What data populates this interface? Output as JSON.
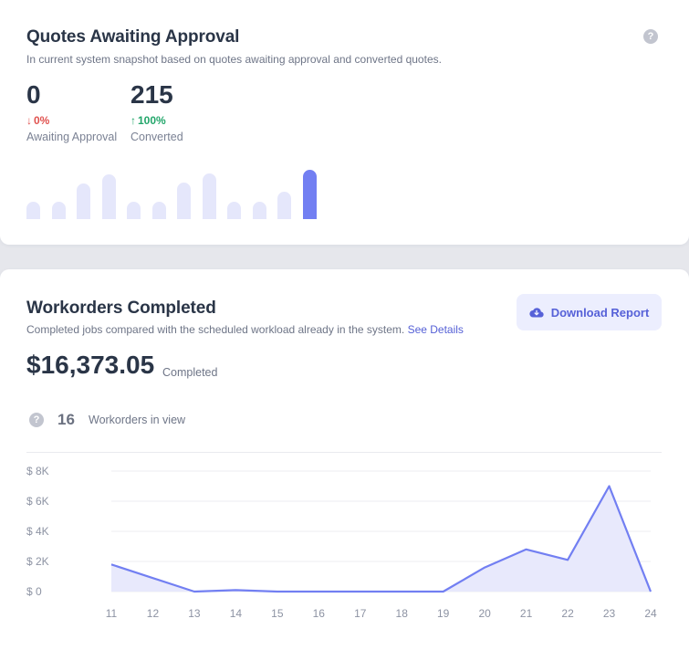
{
  "quotes": {
    "title": "Quotes Awaiting Approval",
    "subtitle": "In current system snapshot based on quotes awaiting approval and converted quotes.",
    "help_icon": "question-circle-icon",
    "stats": [
      {
        "value": "0",
        "delta": "0%",
        "direction": "down",
        "label": "Awaiting Approval"
      },
      {
        "value": "215",
        "delta": "100%",
        "direction": "up",
        "label": "Converted"
      }
    ],
    "bars": [
      0.35,
      0.35,
      0.72,
      0.9,
      0.35,
      0.35,
      0.75,
      0.92,
      0.35,
      0.35,
      0.55,
      1.0
    ],
    "bar_color": "#e5e7fb",
    "bar_active_color": "#727ff2"
  },
  "workorders": {
    "title": "Workorders Completed",
    "subtitle": "Completed jobs compared with the scheduled workload already in the system.",
    "details_link": "See Details",
    "download_label": "Download Report",
    "download_icon": "cloud-download-icon",
    "amount": "$16,373.05",
    "amount_label": "Completed",
    "count": "16",
    "count_label": "Workorders in view",
    "accent_color": "#727ff2"
  },
  "chart_data": {
    "type": "area",
    "x": [
      "11",
      "12",
      "13",
      "14",
      "15",
      "16",
      "17",
      "18",
      "19",
      "20",
      "21",
      "22",
      "23",
      "24"
    ],
    "values": [
      1800,
      900,
      0,
      100,
      0,
      0,
      0,
      0,
      0,
      1600,
      2800,
      2100,
      7000,
      0
    ],
    "ylim": [
      0,
      8000
    ],
    "yticks": [
      0,
      2000,
      4000,
      6000,
      8000
    ],
    "ytick_labels": [
      "$ 0",
      "$ 2K",
      "$ 4K",
      "$ 6K",
      "$ 8K"
    ],
    "grid": true,
    "line_color": "#727ff2",
    "fill_color": "#e8e9fc"
  }
}
